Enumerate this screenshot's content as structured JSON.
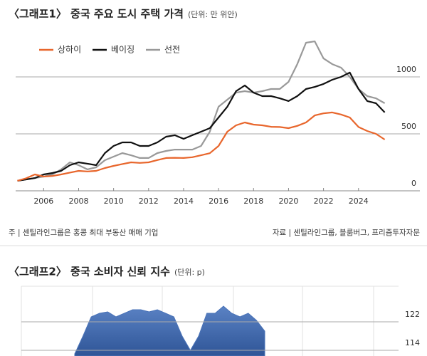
{
  "chart_data": [
    {
      "type": "line",
      "title": "〈그래프1〉 중국 주요 도시 주택 가격",
      "subtitle": "(단위: 만 위안)",
      "x": [
        2004.5,
        2005,
        2005.5,
        2006,
        2006.5,
        2007,
        2007.5,
        2008,
        2008.5,
        2009,
        2009.5,
        2010,
        2010.5,
        2011,
        2011.5,
        2012,
        2012.5,
        2013,
        2013.5,
        2014,
        2014.5,
        2015,
        2015.5,
        2016,
        2016.5,
        2017,
        2017.5,
        2018,
        2018.5,
        2019,
        2019.5,
        2020,
        2020.5,
        2021,
        2021.5,
        2022,
        2022.5,
        2023,
        2023.5,
        2024,
        2024.5,
        2025,
        2025.5
      ],
      "series": [
        {
          "name": "상하이",
          "color": "#e8662c",
          "values": [
            88,
            110,
            144,
            125,
            130,
            144,
            160,
            175,
            170,
            175,
            200,
            219,
            235,
            250,
            245,
            250,
            270,
            288,
            290,
            288,
            295,
            312,
            330,
            394,
            519,
            575,
            600,
            581,
            575,
            562,
            560,
            550,
            570,
            600,
            662,
            680,
            688,
            670,
            644,
            560,
            525,
            500,
            450
          ]
        },
        {
          "name": "베이징",
          "color": "#111111",
          "values": [
            88,
            100,
            112,
            144,
            156,
            175,
            225,
            250,
            238,
            225,
            331,
            394,
            425,
            425,
            394,
            394,
            425,
            475,
            488,
            456,
            488,
            519,
            550,
            644,
            738,
            875,
            925,
            862,
            831,
            831,
            812,
            788,
            831,
            894,
            912,
            938,
            975,
            1000,
            1038,
            894,
            788,
            769,
            688
          ]
        },
        {
          "name": "선전",
          "color": "#999999",
          "values": [
            88,
            100,
            112,
            125,
            144,
            188,
            250,
            225,
            188,
            206,
            269,
            300,
            331,
            312,
            288,
            288,
            331,
            350,
            362,
            362,
            362,
            394,
            519,
            738,
            800,
            862,
            875,
            862,
            875,
            894,
            894,
            956,
            1112,
            1300,
            1312,
            1162,
            1112,
            1081,
            1000,
            894,
            831,
            812,
            769
          ]
        }
      ],
      "xlim": [
        2004.4,
        2025.8
      ],
      "xticks": [
        2006,
        2008,
        2010,
        2012,
        2014,
        2016,
        2018,
        2020,
        2022,
        2024
      ],
      "ylim": [
        0,
        1350
      ],
      "yticks": [
        0,
        500,
        1000
      ],
      "grid": true,
      "notes": [
        "주 | 센틸라인그룹은 홍콩 최대 부동산 매매 기업",
        "자료 | 센틸라인그룹, 블룸버그, 프리즘투자자문"
      ]
    },
    {
      "type": "area",
      "title": "〈그래프2〉 중국 소비자 신뢰 지수",
      "subtitle": "(단위: p)",
      "color": "#4a73b8",
      "values": [
        113,
        118,
        123.4,
        124.4,
        124.8,
        123.4,
        124.4,
        125.4,
        125.4,
        124.8,
        125.4,
        124.4,
        123.4,
        118,
        114,
        118,
        124.4,
        124.4,
        126.4,
        124.4,
        123.4,
        124.4,
        122.4,
        119.4
      ],
      "ylim": [
        112.4,
        131.4
      ],
      "yticks": [
        114,
        122
      ],
      "grid": true
    }
  ]
}
